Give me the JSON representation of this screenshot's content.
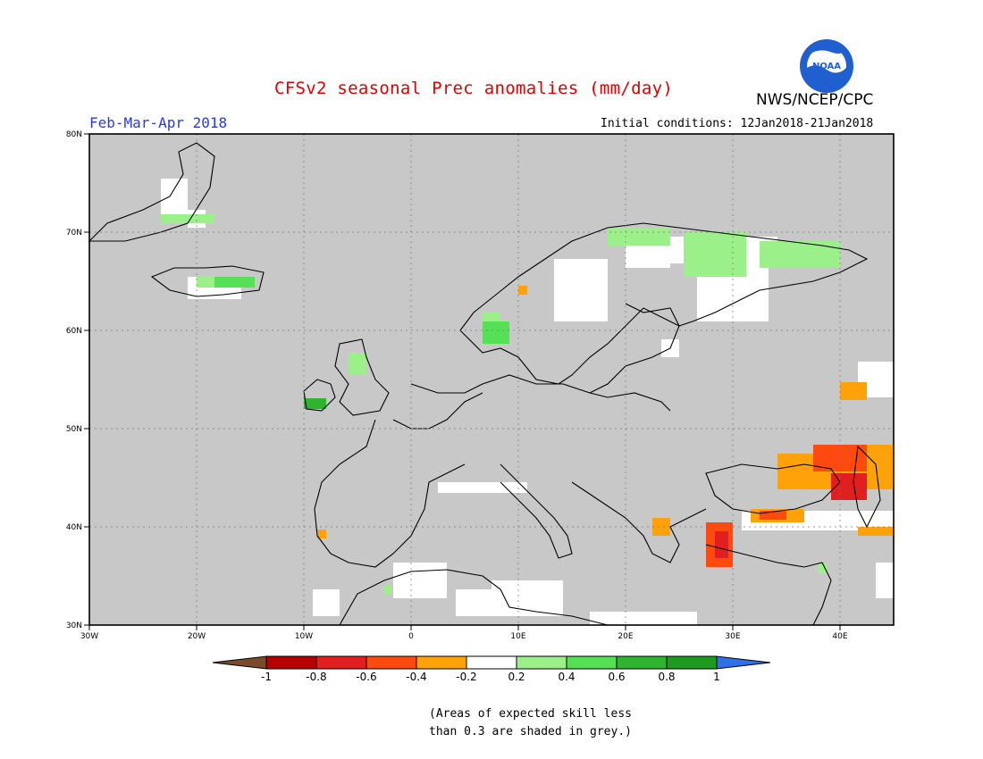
{
  "header": {
    "title": "CFSv2 seasonal Prec anomalies (mm/day)",
    "agency": "NWS/NCEP/CPC",
    "logo_text": "NOAA",
    "period": "Feb-Mar-Apr 2018",
    "initial_conditions": "Initial conditions: 12Jan2018-21Jan2018"
  },
  "map": {
    "region": "Europe",
    "lon_range": [
      -30,
      45
    ],
    "lat_range": [
      30,
      80
    ],
    "lon_ticks": [
      "30W",
      "20W",
      "10W",
      "0",
      "10E",
      "20E",
      "30E",
      "40E"
    ],
    "lat_ticks": [
      "30N",
      "40N",
      "50N",
      "60N",
      "70N",
      "80N"
    ],
    "gridlines": true,
    "land_color": "#c8c8c8",
    "no_skill_color": "#c8c8c8"
  },
  "legend": {
    "tick_labels": [
      "-1",
      "-0.8",
      "-0.6",
      "-0.4",
      "-0.2",
      "0.2",
      "0.4",
      "0.6",
      "0.8",
      "1"
    ],
    "colors": [
      "#7a4a2a",
      "#b40000",
      "#e21f1f",
      "#ff4a0f",
      "#ffa20a",
      "#ffffff",
      "#9bf08a",
      "#55e055",
      "#2fb42f",
      "#1e9a1e",
      "#2f6fe8"
    ]
  },
  "footnote": {
    "line1": "(Areas of expected skill less",
    "line2": "than 0.3 are shaded in grey.)"
  }
}
